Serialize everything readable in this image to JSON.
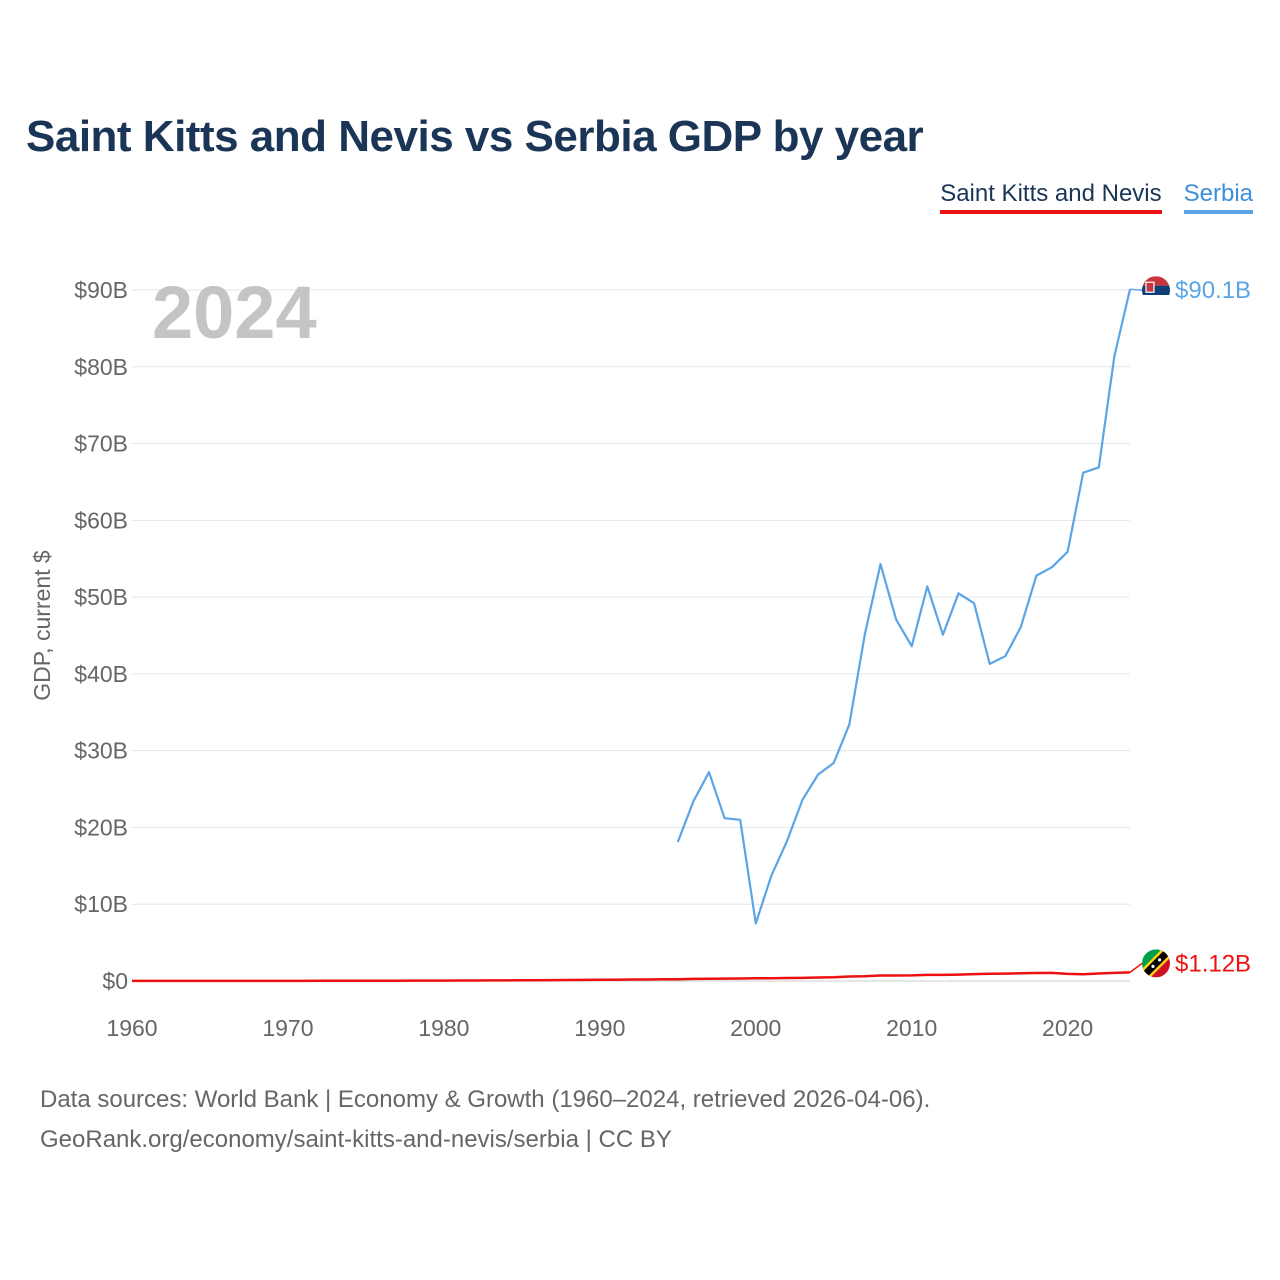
{
  "chart_data": {
    "type": "line",
    "title": "Saint Kitts and Nevis vs Serbia GDP by year",
    "ylabel": "GDP, current $",
    "xlabel": "",
    "year_label": "2024",
    "xlim": [
      1960,
      2024
    ],
    "ylim": [
      0,
      90
    ],
    "x_ticks": [
      1960,
      1970,
      1980,
      1990,
      2000,
      2010,
      2020
    ],
    "x_tick_labels": [
      "1960",
      "1970",
      "1980",
      "1990",
      "2000",
      "2010",
      "2020"
    ],
    "y_ticks": [
      0,
      10,
      20,
      30,
      40,
      50,
      60,
      70,
      80,
      90
    ],
    "y_tick_labels": [
      "$0",
      "$10B",
      "$20B",
      "$30B",
      "$40B",
      "$50B",
      "$60B",
      "$70B",
      "$80B",
      "$90B"
    ],
    "grid": true,
    "legend_position": "top-right",
    "series": [
      {
        "name": "Saint Kitts and Nevis",
        "color": "#ee1111",
        "end_label": "$1.12B",
        "flag_icon": "saint-kitts-and-nevis-flag-icon",
        "x": [
          1960,
          1961,
          1962,
          1963,
          1964,
          1965,
          1966,
          1967,
          1968,
          1969,
          1970,
          1971,
          1972,
          1973,
          1974,
          1975,
          1976,
          1977,
          1978,
          1979,
          1980,
          1981,
          1982,
          1983,
          1984,
          1985,
          1986,
          1987,
          1988,
          1989,
          1990,
          1991,
          1992,
          1993,
          1994,
          1995,
          1996,
          1997,
          1998,
          1999,
          2000,
          2001,
          2002,
          2003,
          2004,
          2005,
          2006,
          2007,
          2008,
          2009,
          2010,
          2011,
          2012,
          2013,
          2014,
          2015,
          2016,
          2017,
          2018,
          2019,
          2020,
          2021,
          2022,
          2023,
          2024
        ],
        "values": [
          0.012,
          0.012,
          0.013,
          0.013,
          0.014,
          0.014,
          0.015,
          0.015,
          0.016,
          0.016,
          0.017,
          0.019,
          0.022,
          0.026,
          0.031,
          0.037,
          0.037,
          0.041,
          0.05,
          0.053,
          0.056,
          0.063,
          0.068,
          0.072,
          0.081,
          0.088,
          0.101,
          0.117,
          0.133,
          0.147,
          0.16,
          0.17,
          0.19,
          0.2,
          0.22,
          0.24,
          0.27,
          0.3,
          0.31,
          0.33,
          0.35,
          0.37,
          0.39,
          0.41,
          0.46,
          0.5,
          0.58,
          0.62,
          0.72,
          0.72,
          0.73,
          0.79,
          0.79,
          0.83,
          0.9,
          0.94,
          0.97,
          1.0,
          1.04,
          1.06,
          0.92,
          0.87,
          0.98,
          1.06,
          1.12
        ]
      },
      {
        "name": "Serbia",
        "color": "#5ba4e6",
        "end_label": "$90.1B",
        "flag_icon": "serbia-flag-icon",
        "x": [
          1995,
          1996,
          1997,
          1998,
          1999,
          2000,
          2001,
          2002,
          2003,
          2004,
          2005,
          2006,
          2007,
          2008,
          2009,
          2010,
          2011,
          2012,
          2013,
          2014,
          2015,
          2016,
          2017,
          2018,
          2019,
          2020,
          2021,
          2022,
          2023,
          2024
        ],
        "values": [
          18.1,
          23.4,
          27.2,
          21.2,
          21.0,
          7.5,
          13.7,
          18.2,
          23.6,
          26.9,
          28.4,
          33.4,
          45.2,
          54.3,
          47.1,
          43.6,
          51.4,
          45.1,
          50.5,
          49.2,
          41.3,
          42.3,
          46.1,
          52.8,
          53.9,
          55.9,
          66.2,
          66.9,
          81.4,
          90.1
        ]
      }
    ]
  },
  "footer": {
    "line1": "Data sources: World Bank | Economy & Growth (1960–2024, retrieved 2026-04-06).",
    "line2": "GeoRank.org/economy/saint-kitts-and-nevis/serbia | CC BY"
  }
}
